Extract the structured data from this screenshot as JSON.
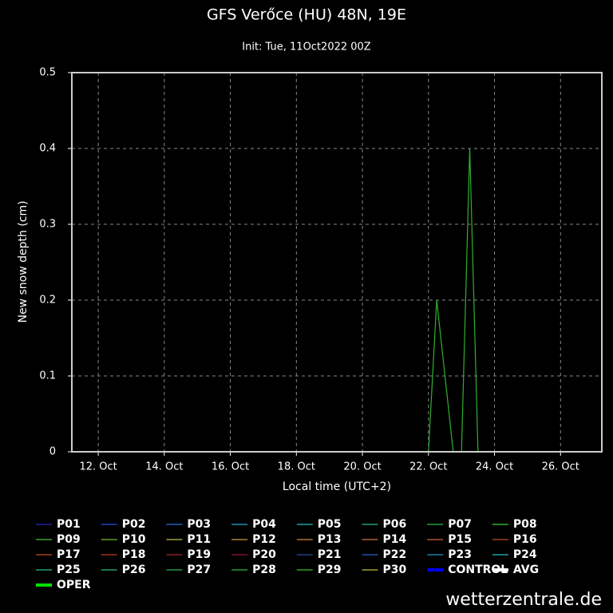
{
  "chart_data": {
    "type": "line",
    "title": "GFS Verőce (HU) 48N, 19E",
    "subtitle": "Init: Tue, 11Oct2022 00Z",
    "xlabel": "Local time (UTC+2)",
    "ylabel": "New snow depth (cm)",
    "footer": "wetterzentrale.de",
    "grid": true,
    "xlim": [
      11.2,
      27.25
    ],
    "xticks": [
      {
        "value": 12,
        "label": "12. Oct"
      },
      {
        "value": 14,
        "label": "14. Oct"
      },
      {
        "value": 16,
        "label": "16. Oct"
      },
      {
        "value": 18,
        "label": "18. Oct"
      },
      {
        "value": 20,
        "label": "20. Oct"
      },
      {
        "value": 22,
        "label": "22. Oct"
      },
      {
        "value": 24,
        "label": "24. Oct"
      },
      {
        "value": 26,
        "label": "26. Oct"
      }
    ],
    "ylim": [
      0,
      0.5
    ],
    "yticks": [
      0,
      0.1,
      0.2,
      0.3,
      0.4,
      0.5
    ],
    "x": [
      11.2,
      22.0,
      22.25,
      22.75,
      23.0,
      23.25,
      23.5,
      27.25
    ],
    "series": [
      {
        "name": "P01",
        "color": "#2020a0",
        "values": [
          0,
          0,
          0,
          0,
          0,
          0,
          0,
          0
        ]
      },
      {
        "name": "P02",
        "color": "#2040c0",
        "values": [
          0,
          0,
          0,
          0,
          0,
          0,
          0,
          0
        ]
      },
      {
        "name": "P03",
        "color": "#2060c0",
        "values": [
          0,
          0,
          0,
          0,
          0,
          0,
          0,
          0
        ]
      },
      {
        "name": "P04",
        "color": "#2090b0",
        "values": [
          0,
          0,
          0,
          0,
          0,
          0,
          0,
          0
        ]
      },
      {
        "name": "P05",
        "color": "#20a0a0",
        "values": [
          0,
          0,
          0,
          0,
          0,
          0,
          0,
          0
        ]
      },
      {
        "name": "P06",
        "color": "#20a070",
        "values": [
          0,
          0,
          0,
          0,
          0,
          0,
          0,
          0
        ]
      },
      {
        "name": "P07",
        "color": "#20a040",
        "values": [
          0,
          0,
          0,
          0,
          0,
          0,
          0,
          0
        ]
      },
      {
        "name": "P08",
        "color": "#30b030",
        "values": [
          0,
          0,
          0.2,
          0,
          0,
          0.4,
          0,
          0
        ]
      },
      {
        "name": "P09",
        "color": "#40a030",
        "values": [
          0,
          0,
          0,
          0,
          0,
          0,
          0,
          0
        ]
      },
      {
        "name": "P10",
        "color": "#60a020",
        "values": [
          0,
          0,
          0,
          0,
          0,
          0,
          0,
          0
        ]
      },
      {
        "name": "P11",
        "color": "#a0a030",
        "values": [
          0,
          0,
          0,
          0,
          0,
          0,
          0,
          0
        ]
      },
      {
        "name": "P12",
        "color": "#b08030",
        "values": [
          0,
          0,
          0,
          0,
          0,
          0,
          0,
          0
        ]
      },
      {
        "name": "P13",
        "color": "#b07030",
        "values": [
          0,
          0,
          0,
          0,
          0,
          0,
          0,
          0
        ]
      },
      {
        "name": "P14",
        "color": "#b06030",
        "values": [
          0,
          0,
          0,
          0,
          0,
          0,
          0,
          0
        ]
      },
      {
        "name": "P15",
        "color": "#b05030",
        "values": [
          0,
          0,
          0,
          0,
          0,
          0,
          0,
          0
        ]
      },
      {
        "name": "P16",
        "color": "#a04020",
        "values": [
          0,
          0,
          0,
          0,
          0,
          0,
          0,
          0
        ]
      },
      {
        "name": "P17",
        "color": "#a04020",
        "values": [
          0,
          0,
          0,
          0,
          0,
          0,
          0,
          0
        ]
      },
      {
        "name": "P18",
        "color": "#a03020",
        "values": [
          0,
          0,
          0,
          0,
          0,
          0,
          0,
          0
        ]
      },
      {
        "name": "P19",
        "color": "#902020",
        "values": [
          0,
          0,
          0,
          0,
          0,
          0,
          0,
          0
        ]
      },
      {
        "name": "P20",
        "color": "#801030",
        "values": [
          0,
          0,
          0,
          0,
          0,
          0,
          0,
          0
        ]
      },
      {
        "name": "P21",
        "color": "#204080",
        "values": [
          0,
          0,
          0,
          0,
          0,
          0,
          0,
          0
        ]
      },
      {
        "name": "P22",
        "color": "#2050a0",
        "values": [
          0,
          0,
          0,
          0,
          0,
          0,
          0,
          0
        ]
      },
      {
        "name": "P23",
        "color": "#2080a0",
        "values": [
          0,
          0,
          0,
          0,
          0,
          0,
          0,
          0
        ]
      },
      {
        "name": "P24",
        "color": "#20a0a0",
        "values": [
          0,
          0,
          0,
          0,
          0,
          0,
          0,
          0
        ]
      },
      {
        "name": "P25",
        "color": "#20a080",
        "values": [
          0,
          0,
          0,
          0,
          0,
          0,
          0,
          0
        ]
      },
      {
        "name": "P26",
        "color": "#20a060",
        "values": [
          0,
          0,
          0,
          0,
          0,
          0,
          0,
          0
        ]
      },
      {
        "name": "P27",
        "color": "#20a040",
        "values": [
          0,
          0,
          0,
          0,
          0,
          0,
          0,
          0
        ]
      },
      {
        "name": "P28",
        "color": "#20a030",
        "values": [
          0,
          0,
          0,
          0,
          0,
          0,
          0,
          0
        ]
      },
      {
        "name": "P29",
        "color": "#30a020",
        "values": [
          0,
          0,
          0,
          0,
          0,
          0,
          0,
          0
        ]
      },
      {
        "name": "P30",
        "color": "#a0a030",
        "values": [
          0,
          0,
          0,
          0,
          0,
          0,
          0,
          0
        ]
      },
      {
        "name": "CONTROL",
        "color": "#0000ff",
        "values": [
          0,
          0,
          0,
          0,
          0,
          0,
          0,
          0
        ]
      },
      {
        "name": "AVG",
        "color": "#ffffff",
        "values": [
          0,
          0,
          0,
          0,
          0,
          0,
          0,
          0
        ]
      },
      {
        "name": "OPER",
        "color": "#00e000",
        "values": [
          0,
          0,
          0,
          0,
          0,
          0,
          0,
          0
        ]
      }
    ]
  }
}
